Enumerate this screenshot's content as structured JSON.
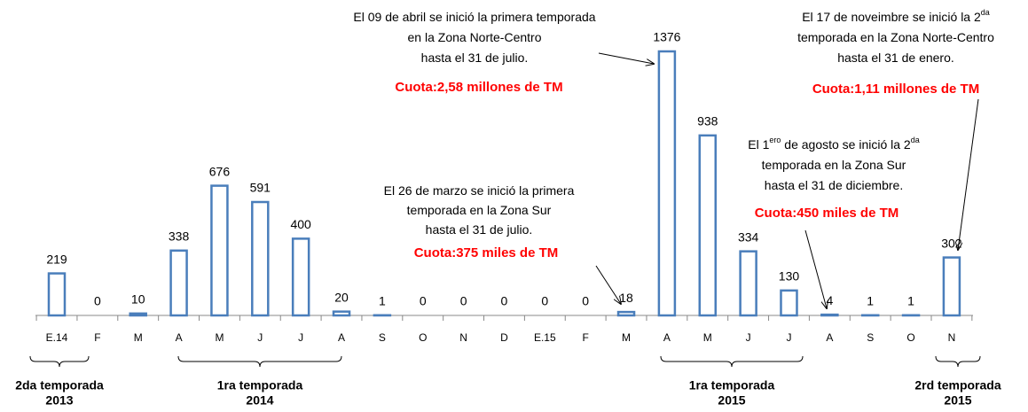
{
  "chart_data": {
    "type": "bar",
    "categories": [
      "E.14",
      "F",
      "M",
      "A",
      "M",
      "J",
      "J",
      "A",
      "S",
      "O",
      "N",
      "D",
      "E.15",
      "F",
      "M",
      "A",
      "M",
      "J",
      "J",
      "A",
      "S",
      "O",
      "N"
    ],
    "values": [
      219,
      0,
      10,
      338,
      676,
      591,
      400,
      20,
      1,
      0,
      0,
      0,
      0,
      0,
      18,
      1376,
      938,
      334,
      130,
      4,
      1,
      1,
      302
    ],
    "color": "#4a7ebb",
    "annotations": [
      {
        "lines": [
          [
            {
              "text": "El 09 de abril se inició la primera temporada"
            }
          ],
          [
            {
              "text": "en la Zona  Norte-Centro"
            }
          ],
          [
            {
              "text": "hasta el 31 de julio."
            }
          ]
        ],
        "quota": "Cuota:2,58 millones de TM"
      },
      {
        "lines": [
          [
            {
              "text": "El 17 de noveimbre se inició la 2"
            },
            {
              "sup": "da"
            }
          ],
          [
            {
              "text": "temporada en la Zona  Norte-Centro"
            }
          ],
          [
            {
              "text": "hasta el 31 de enero."
            }
          ]
        ],
        "quota": "Cuota:1,11 millones de TM"
      },
      {
        "lines": [
          [
            {
              "text": "El 1"
            },
            {
              "sup": "ero"
            },
            {
              "text": " de agosto se inició la 2"
            },
            {
              "sup": "da"
            }
          ],
          [
            {
              "text": "temporada en la Zona  Sur"
            }
          ],
          [
            {
              "text": "hasta el 31 de diciembre."
            }
          ]
        ],
        "quota": "Cuota:450 miles de TM"
      },
      {
        "lines": [
          [
            {
              "text": "El 26 de marzo se inició la primera"
            }
          ],
          [
            {
              "text": "temporada en la Zona Sur"
            }
          ],
          [
            {
              "text": "hasta el 31 de julio."
            }
          ]
        ],
        "quota": "Cuota:375 miles de TM"
      }
    ],
    "groups": [
      {
        "lines": [
          "2da  temporada",
          "2013"
        ]
      },
      {
        "lines": [
          "1ra temporada",
          "2014"
        ]
      },
      {
        "lines": [
          "1ra temporada",
          "2015"
        ]
      },
      {
        "lines": [
          "2rd temporada",
          "2015"
        ]
      }
    ]
  }
}
